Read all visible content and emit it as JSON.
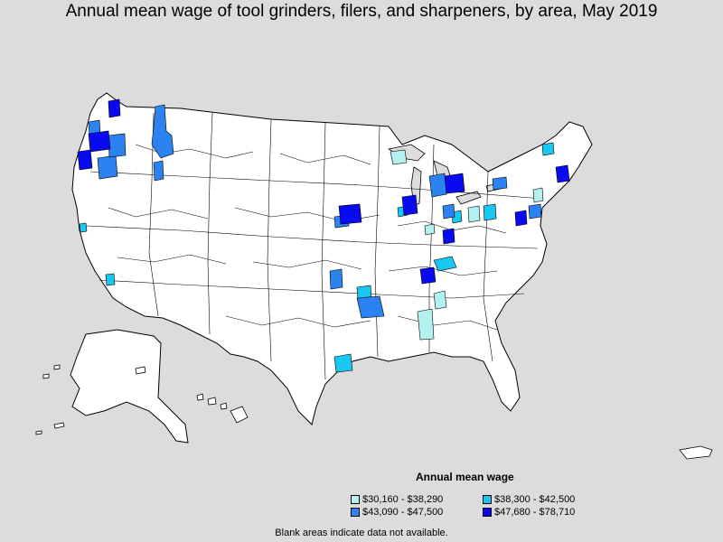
{
  "title": "Annual mean wage of tool grinders, filers, and sharpeners, by area, May 2019",
  "legend": {
    "title": "Annual mean wage",
    "items": [
      {
        "label": "$30,160 - $38,290",
        "color": "#b3f0f0"
      },
      {
        "label": "$38,300 - $42,500",
        "color": "#19c8f0"
      },
      {
        "label": "$43,090 - $47,500",
        "color": "#2b82f0"
      },
      {
        "label": "$47,680 - $78,710",
        "color": "#0a0af0"
      }
    ]
  },
  "note": "Blank areas indicate data not available.",
  "colors": {
    "background": "#dcdcdc",
    "land": "#ffffff",
    "border": "#000000"
  }
}
